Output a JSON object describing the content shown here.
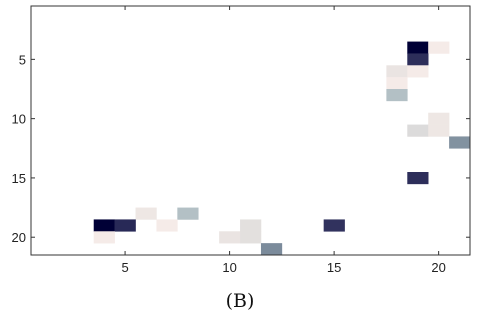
{
  "caption": "(B)",
  "chart_data": {
    "type": "heatmap",
    "title": "",
    "xlabel": "",
    "ylabel": "",
    "xlim": [
      0.5,
      21.5
    ],
    "ylim": [
      0.5,
      21.5
    ],
    "y_reversed": true,
    "grid": false,
    "colormap": "bone (white = low, black = high)",
    "x_ticks": [
      5,
      10,
      15,
      20
    ],
    "y_ticks": [
      5,
      10,
      15,
      20
    ],
    "cells": [
      {
        "x": 19,
        "y": 4,
        "v": 1.0
      },
      {
        "x": 20,
        "y": 4,
        "v": 0.03
      },
      {
        "x": 19,
        "y": 5,
        "v": 0.8
      },
      {
        "x": 18,
        "y": 6,
        "v": 0.06
      },
      {
        "x": 19,
        "y": 6,
        "v": 0.03
      },
      {
        "x": 18,
        "y": 7,
        "v": 0.03
      },
      {
        "x": 18,
        "y": 8,
        "v": 0.22
      },
      {
        "x": 20,
        "y": 10,
        "v": 0.05
      },
      {
        "x": 19,
        "y": 11,
        "v": 0.1
      },
      {
        "x": 20,
        "y": 11,
        "v": 0.05
      },
      {
        "x": 21,
        "y": 12,
        "v": 0.42
      },
      {
        "x": 19,
        "y": 15,
        "v": 0.8
      },
      {
        "x": 6,
        "y": 18,
        "v": 0.05
      },
      {
        "x": 8,
        "y": 18,
        "v": 0.22
      },
      {
        "x": 7,
        "y": 19,
        "v": 0.03
      },
      {
        "x": 4,
        "y": 19,
        "v": 1.0
      },
      {
        "x": 5,
        "y": 19,
        "v": 0.82
      },
      {
        "x": 11,
        "y": 19,
        "v": 0.08
      },
      {
        "x": 15,
        "y": 19,
        "v": 0.78
      },
      {
        "x": 4,
        "y": 20,
        "v": 0.03
      },
      {
        "x": 10,
        "y": 20,
        "v": 0.06
      },
      {
        "x": 11,
        "y": 20,
        "v": 0.08
      },
      {
        "x": 12,
        "y": 21,
        "v": 0.45
      }
    ]
  }
}
